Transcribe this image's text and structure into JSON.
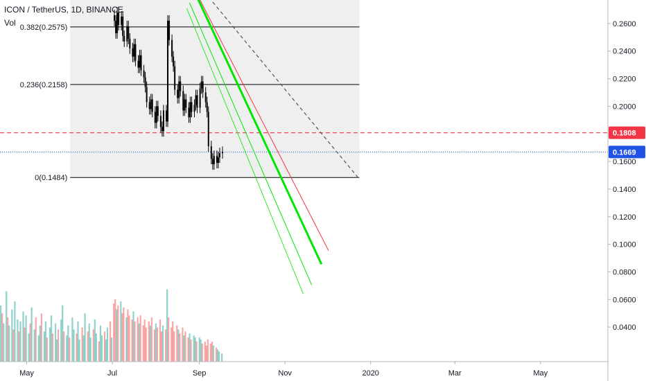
{
  "header": {
    "symbol_line": "ICON / TetherUS, 1D, BINANCE",
    "vol_label": "Vol"
  },
  "colors": {
    "up": "#26a69a",
    "down": "#ef5350",
    "candle": "#000000",
    "fib_zone": "#efefef",
    "red_line": "#f23645",
    "green_line": "#00e600",
    "price_tag_red": "#f23645",
    "price_tag_blue": "#1e53e5"
  },
  "chart_data": {
    "type": "candlestick",
    "y_axis": {
      "range": [
        0.022,
        0.272
      ],
      "ticks": [
        "0.2600",
        "0.2400",
        "0.2200",
        "0.2000",
        "0.1800",
        "0.1600",
        "0.1400",
        "0.1200",
        "0.1000",
        "0.0800",
        "0.0600",
        "0.0400"
      ],
      "tick_values": [
        0.26,
        0.24,
        0.22,
        0.2,
        0.18,
        0.16,
        0.14,
        0.12,
        0.1,
        0.08,
        0.06,
        0.04
      ]
    },
    "x_axis": {
      "range": [
        "2019-04-12",
        "2020-06-18"
      ],
      "labels": [
        "May",
        "Jul",
        "Sep",
        "Nov",
        "2020",
        "Mar",
        "May"
      ],
      "label_dates": [
        "2019-05-01",
        "2019-07-01",
        "2019-09-01",
        "2019-11-01",
        "2020-01-01",
        "2020-03-01",
        "2020-05-01"
      ]
    },
    "fib_levels": [
      {
        "label": "0.382(0.2575)",
        "value": 0.2575
      },
      {
        "label": "0.236(0.2158)",
        "value": 0.2158
      },
      {
        "label": "0(0.1484)",
        "value": 0.1484
      }
    ],
    "fib_zone": {
      "start": "2019-06-01",
      "end": "2019-12-24",
      "top": 0.272,
      "bottom": 0.1484
    },
    "horizontal_lines": [
      {
        "name": "resistance",
        "value": 0.1808,
        "style": "dashed",
        "color": "#f23645"
      },
      {
        "name": "last-price",
        "value": 0.1669,
        "style": "dotted",
        "color": "#1e53e5"
      }
    ],
    "price_tags": [
      {
        "text": "0.1808",
        "value": 0.1808,
        "color": "#f23645"
      },
      {
        "text": "0.1669",
        "value": 0.1669,
        "color": "#1e53e5"
      }
    ],
    "trend_lines": [
      {
        "name": "dashed-black",
        "color": "#555555",
        "width": 1.2,
        "dash": "5,4",
        "from": [
          "2019-09-02",
          0.286
        ],
        "to": [
          "2019-12-23",
          0.1484
        ]
      },
      {
        "name": "red",
        "color": "#f23645",
        "width": 1,
        "from": [
          "2019-09-01",
          0.278
        ],
        "to": [
          "2019-12-02",
          0.0955
        ]
      },
      {
        "name": "green-thick",
        "color": "#00e600",
        "width": 3,
        "from": [
          "2019-08-30",
          0.28
        ],
        "to": [
          "2019-11-27",
          0.0855
        ]
      },
      {
        "name": "green-thin-1",
        "color": "#00e600",
        "width": 1,
        "from": [
          "2019-08-25",
          0.275
        ],
        "to": [
          "2019-11-20",
          0.0705
        ]
      },
      {
        "name": "green-thin-2",
        "color": "#00e600",
        "width": 0.8,
        "from": [
          "2019-08-23",
          0.271
        ],
        "to": [
          "2019-11-14",
          0.064
        ]
      }
    ],
    "candles": {
      "start": "2019-07-02",
      "close": [
        0.262,
        0.253,
        0.268,
        0.259,
        0.265,
        0.251,
        0.247,
        0.258,
        0.249,
        0.242,
        0.236,
        0.245,
        0.233,
        0.228,
        0.237,
        0.226,
        0.221,
        0.214,
        0.203,
        0.198,
        0.205,
        0.196,
        0.188,
        0.2,
        0.193,
        0.185,
        0.182,
        0.197,
        0.189,
        0.262,
        0.248,
        0.236,
        0.229,
        0.212,
        0.206,
        0.218,
        0.211,
        0.197,
        0.205,
        0.199,
        0.192,
        0.203,
        0.196,
        0.201,
        0.208,
        0.199,
        0.213,
        0.218,
        0.21,
        0.203,
        0.196,
        0.171,
        0.162,
        0.158,
        0.164,
        0.159,
        0.163,
        0.166,
        0.1669
      ],
      "volume": [
        29,
        31,
        26,
        28,
        30,
        24,
        27,
        22,
        26,
        23,
        21,
        25,
        20,
        22,
        19,
        23,
        18,
        21,
        17,
        20,
        18,
        22,
        16,
        19,
        17,
        21,
        15,
        18,
        16,
        36,
        22,
        17,
        20,
        15,
        18,
        16,
        14,
        17,
        13,
        15,
        12,
        14,
        11,
        13,
        12,
        10,
        12,
        11,
        9,
        10,
        8,
        11,
        9,
        10,
        8,
        7,
        6,
        5,
        4
      ]
    },
    "volume_early": [
      28,
      24,
      19,
      35,
      22,
      18,
      26,
      16,
      30,
      21,
      15,
      20,
      25,
      17,
      23,
      14,
      19,
      27,
      16,
      22,
      13,
      18,
      24,
      15,
      20,
      12,
      17,
      23,
      14,
      19,
      11,
      16,
      21,
      28,
      15,
      13,
      18,
      12,
      22,
      16,
      14,
      20,
      11,
      17,
      13,
      24,
      15,
      19,
      12,
      16,
      21,
      14,
      10,
      18,
      13,
      15,
      11,
      17,
      20,
      12
    ]
  }
}
